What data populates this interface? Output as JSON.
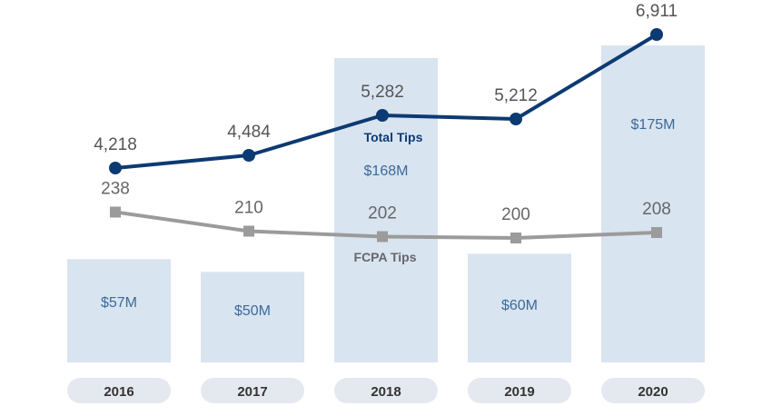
{
  "chart_data": {
    "type": "bar",
    "categories": [
      "2016",
      "2017",
      "2018",
      "2019",
      "2020"
    ],
    "bars": {
      "values": [
        57,
        50,
        168,
        60,
        175
      ],
      "labels": [
        "$57M",
        "$50M",
        "$168M",
        "$60M",
        "$175M"
      ]
    },
    "series": [
      {
        "name": "Total Tips",
        "type": "line",
        "values": [
          4218,
          4484,
          5282,
          5212,
          6911
        ],
        "labels": [
          "4,218",
          "4,484",
          "5,282",
          "5,212",
          "6,911"
        ],
        "color": "#0c3a72",
        "marker": "circle"
      },
      {
        "name": "FCPA Tips",
        "type": "line",
        "values": [
          238,
          210,
          202,
          200,
          208
        ],
        "labels": [
          "238",
          "210",
          "202",
          "200",
          "208"
        ],
        "color": "#9b9b9b",
        "marker": "square"
      }
    ],
    "colors": {
      "bar": "#d9e4f1",
      "bar_text": "#3b6a99",
      "year_pill": "#e4e9ef"
    },
    "grid": false,
    "legend": "none"
  }
}
